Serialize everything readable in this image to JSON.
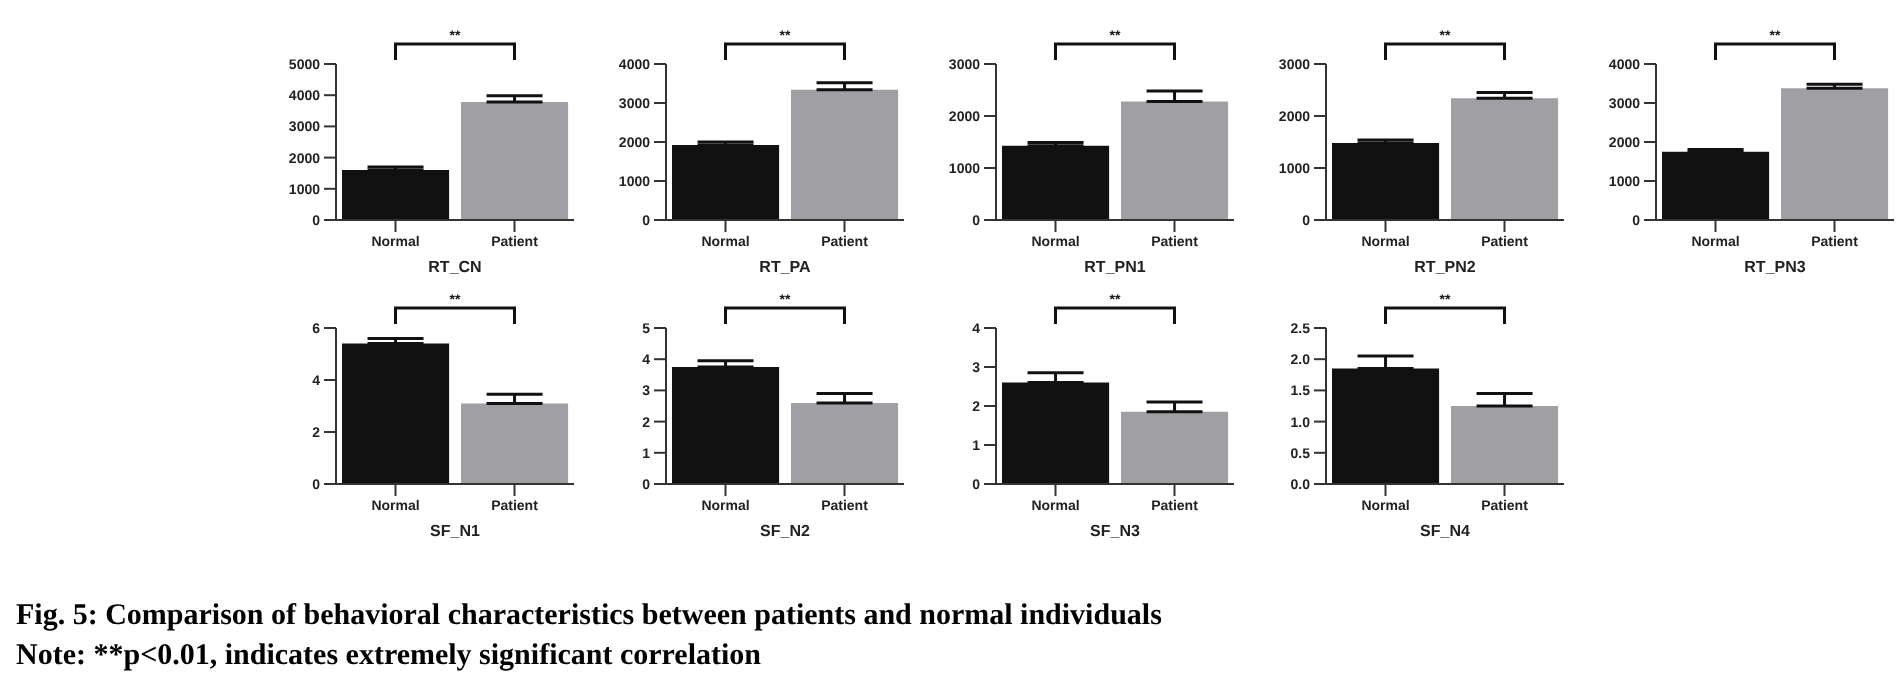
{
  "chart_data": [
    {
      "type": "bar",
      "xlabel": "RT_CN",
      "categories": [
        "Normal",
        "Patient"
      ],
      "values": [
        1600,
        3780
      ],
      "colors": [
        "#111111",
        "#a0a0a4"
      ],
      "errors": [
        [
          1600,
          1700
        ],
        [
          3780,
          3980
        ]
      ],
      "ylim": [
        0,
        5000
      ],
      "yticks": [
        0,
        1000,
        2000,
        3000,
        4000,
        5000
      ],
      "annotations": [
        "**"
      ]
    },
    {
      "type": "bar",
      "xlabel": "RT_PA",
      "categories": [
        "Normal",
        "Patient"
      ],
      "values": [
        1920,
        3340
      ],
      "colors": [
        "#111111",
        "#a0a0a4"
      ],
      "errors": [
        [
          1920,
          2000
        ],
        [
          3340,
          3520
        ]
      ],
      "ylim": [
        0,
        4000
      ],
      "yticks": [
        0,
        1000,
        2000,
        3000,
        4000
      ],
      "annotations": [
        "**"
      ]
    },
    {
      "type": "bar",
      "xlabel": "RT_PN1",
      "categories": [
        "Normal",
        "Patient"
      ],
      "values": [
        1430,
        2280
      ],
      "colors": [
        "#111111",
        "#a0a0a4"
      ],
      "errors": [
        [
          1430,
          1490
        ],
        [
          2280,
          2480
        ]
      ],
      "ylim": [
        0,
        3000
      ],
      "yticks": [
        0,
        1000,
        2000,
        3000
      ],
      "annotations": [
        "**"
      ]
    },
    {
      "type": "bar",
      "xlabel": "RT_PN2",
      "categories": [
        "Normal",
        "Patient"
      ],
      "values": [
        1480,
        2340
      ],
      "colors": [
        "#111111",
        "#a0a0a4"
      ],
      "errors": [
        [
          1480,
          1540
        ],
        [
          2340,
          2450
        ]
      ],
      "ylim": [
        0,
        3000
      ],
      "yticks": [
        0,
        1000,
        2000,
        3000
      ],
      "annotations": [
        "**"
      ]
    },
    {
      "type": "bar",
      "xlabel": "RT_PN3",
      "categories": [
        "Normal",
        "Patient"
      ],
      "values": [
        1750,
        3380
      ],
      "colors": [
        "#111111",
        "#a0a0a4"
      ],
      "errors": [
        [
          1750,
          1810
        ],
        [
          3380,
          3480
        ]
      ],
      "ylim": [
        0,
        4000
      ],
      "yticks": [
        0,
        1000,
        2000,
        3000,
        4000
      ],
      "annotations": [
        "**"
      ]
    },
    {
      "type": "bar",
      "xlabel": "SF_N1",
      "categories": [
        "Normal",
        "Patient"
      ],
      "values": [
        5.4,
        3.1
      ],
      "colors": [
        "#111111",
        "#a0a0a4"
      ],
      "errors": [
        [
          5.4,
          5.6
        ],
        [
          3.1,
          3.45
        ]
      ],
      "ylim": [
        0,
        6
      ],
      "yticks": [
        0,
        2,
        4,
        6
      ],
      "annotations": [
        "**"
      ]
    },
    {
      "type": "bar",
      "xlabel": "SF_N2",
      "categories": [
        "Normal",
        "Patient"
      ],
      "values": [
        3.75,
        2.6
      ],
      "colors": [
        "#111111",
        "#a0a0a4"
      ],
      "errors": [
        [
          3.75,
          3.95
        ],
        [
          2.6,
          2.9
        ]
      ],
      "ylim": [
        0,
        5
      ],
      "yticks": [
        0,
        1,
        2,
        3,
        4,
        5
      ],
      "annotations": [
        "**"
      ]
    },
    {
      "type": "bar",
      "xlabel": "SF_N3",
      "categories": [
        "Normal",
        "Patient"
      ],
      "values": [
        2.6,
        1.85
      ],
      "colors": [
        "#111111",
        "#a0a0a4"
      ],
      "errors": [
        [
          2.6,
          2.85
        ],
        [
          1.85,
          2.1
        ]
      ],
      "ylim": [
        0,
        4
      ],
      "yticks": [
        0,
        1,
        2,
        3,
        4
      ],
      "annotations": [
        "**"
      ]
    },
    {
      "type": "bar",
      "xlabel": "SF_N4",
      "categories": [
        "Normal",
        "Patient"
      ],
      "values": [
        1.85,
        1.25
      ],
      "colors": [
        "#111111",
        "#a0a0a4"
      ],
      "errors": [
        [
          1.85,
          2.05
        ],
        [
          1.25,
          1.45
        ]
      ],
      "ylim": [
        0,
        2.5
      ],
      "yticks": [
        {
          "value": 0,
          "label": "0.0"
        },
        {
          "value": 0.5,
          "label": "0.5"
        },
        {
          "value": 1,
          "label": "1.0"
        },
        {
          "value": 1.5,
          "label": "1.5"
        },
        {
          "value": 2,
          "label": "2.0"
        },
        {
          "value": 2.5,
          "label": "2.5"
        }
      ],
      "annotations": [
        "**",
        "Fig. 5: Comparison of behavioral characteristics between patients and normal individuals",
        "Note: **p<0.01, indicates extremely significant correlation"
      ]
    }
  ]
}
